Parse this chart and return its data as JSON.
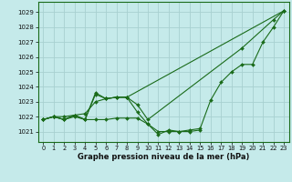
{
  "title": "Graphe pression niveau de la mer (hPa)",
  "bg_color": "#c5eaea",
  "grid_color": "#a8d0d0",
  "line_color": "#1a6b1a",
  "xlim": [
    -0.5,
    23.5
  ],
  "ylim": [
    1020.3,
    1029.7
  ],
  "yticks": [
    1021,
    1022,
    1023,
    1024,
    1025,
    1026,
    1027,
    1028,
    1029
  ],
  "xticks": [
    0,
    1,
    2,
    3,
    4,
    5,
    6,
    7,
    8,
    9,
    10,
    11,
    12,
    13,
    14,
    15,
    16,
    17,
    18,
    19,
    20,
    21,
    22,
    23
  ],
  "series": [
    {
      "x": [
        0,
        1,
        2,
        3,
        4,
        5,
        6,
        7,
        8,
        9,
        10,
        11,
        12,
        13,
        14,
        15,
        16,
        17,
        18,
        19,
        20,
        21,
        22,
        23
      ],
      "y": [
        1021.8,
        1022.0,
        1021.8,
        1022.1,
        1021.8,
        1023.6,
        1023.2,
        1023.3,
        1023.3,
        1022.3,
        1021.5,
        1020.8,
        1021.1,
        1021.0,
        1021.1,
        1021.2,
        1023.1,
        1024.3,
        1025.0,
        1025.5,
        1025.5,
        1027.0,
        1028.0,
        1029.1
      ]
    },
    {
      "x": [
        0,
        1,
        2,
        3,
        4,
        5,
        6,
        7,
        8,
        9,
        10,
        19,
        22,
        23
      ],
      "y": [
        1021.8,
        1022.0,
        1021.8,
        1022.1,
        1021.8,
        1023.5,
        1023.2,
        1023.3,
        1023.3,
        1022.8,
        1021.8,
        1026.6,
        1028.5,
        1029.1
      ]
    },
    {
      "x": [
        0,
        1,
        2,
        3,
        4,
        5,
        6,
        7,
        8,
        23
      ],
      "y": [
        1021.8,
        1022.0,
        1022.0,
        1022.1,
        1022.2,
        1023.0,
        1023.2,
        1023.3,
        1023.3,
        1029.1
      ]
    },
    {
      "x": [
        0,
        1,
        2,
        3,
        4,
        5,
        6,
        7,
        8,
        9,
        10,
        11,
        12,
        13,
        14,
        15
      ],
      "y": [
        1021.8,
        1022.0,
        1021.8,
        1022.0,
        1021.8,
        1021.8,
        1021.8,
        1021.9,
        1021.9,
        1021.9,
        1021.5,
        1021.0,
        1021.0,
        1021.0,
        1021.0,
        1021.1
      ]
    }
  ]
}
